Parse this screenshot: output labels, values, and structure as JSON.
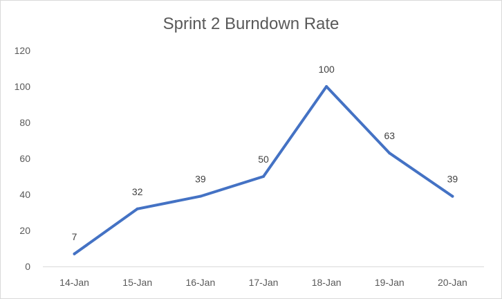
{
  "chart_data": {
    "type": "line",
    "title": "Sprint 2 Burndown Rate",
    "categories": [
      "14-Jan",
      "15-Jan",
      "16-Jan",
      "17-Jan",
      "18-Jan",
      "19-Jan",
      "20-Jan"
    ],
    "series": [
      {
        "values": [
          7,
          32,
          39,
          50,
          100,
          63,
          39
        ],
        "color": "#4472C4"
      }
    ],
    "ylim": [
      0,
      120
    ],
    "yticks": [
      0,
      20,
      40,
      60,
      80,
      100,
      120
    ],
    "grid": false,
    "data_labels": true,
    "legend": "none"
  }
}
